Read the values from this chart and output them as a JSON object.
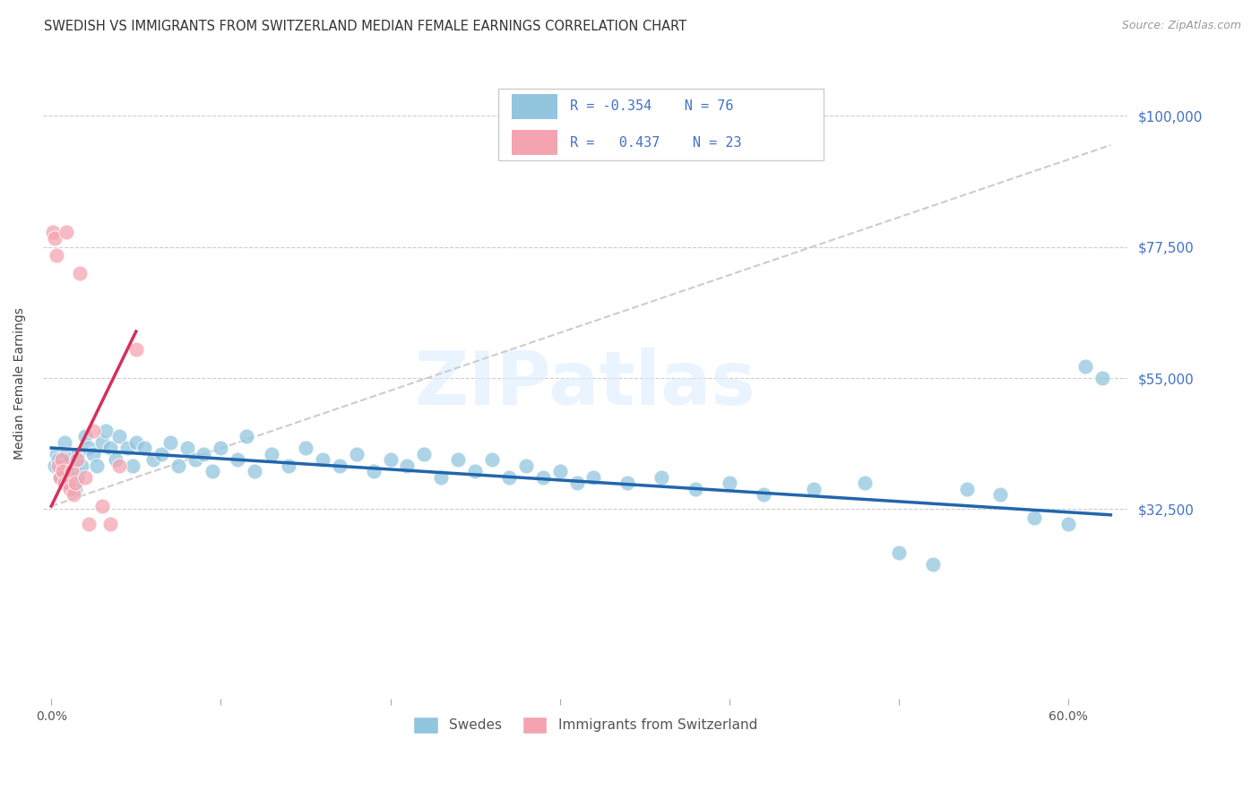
{
  "title": "SWEDISH VS IMMIGRANTS FROM SWITZERLAND MEDIAN FEMALE EARNINGS CORRELATION CHART",
  "source": "Source: ZipAtlas.com",
  "ylabel": "Median Female Earnings",
  "ytick_vals": [
    0,
    32500,
    55000,
    77500,
    100000
  ],
  "ytick_labels": [
    "",
    "$32,500",
    "$55,000",
    "$77,500",
    "$100,000"
  ],
  "xtick_vals": [
    0.0,
    0.1,
    0.2,
    0.3,
    0.4,
    0.5,
    0.6
  ],
  "xtick_labels": [
    "0.0%",
    "",
    "",
    "",
    "",
    "",
    "60.0%"
  ],
  "xmin": -0.005,
  "xmax": 0.635,
  "ymin": 5000,
  "ymax": 108000,
  "blue_R": -0.354,
  "blue_N": 76,
  "pink_R": 0.437,
  "pink_N": 23,
  "blue_color": "#92c5de",
  "pink_color": "#f4a4b0",
  "blue_line_color": "#2166ac",
  "pink_line_color": "#d6305a",
  "dashed_line_color": "#cccccc",
  "legend_label_blue": "Swedes",
  "legend_label_pink": "Immigrants from Switzerland",
  "watermark": "ZIPatlas",
  "blue_scatter_x": [
    0.002,
    0.003,
    0.004,
    0.005,
    0.006,
    0.007,
    0.008,
    0.009,
    0.01,
    0.011,
    0.012,
    0.013,
    0.014,
    0.015,
    0.016,
    0.018,
    0.02,
    0.022,
    0.025,
    0.027,
    0.03,
    0.032,
    0.035,
    0.038,
    0.04,
    0.045,
    0.048,
    0.05,
    0.055,
    0.06,
    0.065,
    0.07,
    0.075,
    0.08,
    0.085,
    0.09,
    0.095,
    0.1,
    0.11,
    0.115,
    0.12,
    0.13,
    0.14,
    0.15,
    0.16,
    0.17,
    0.18,
    0.19,
    0.2,
    0.21,
    0.22,
    0.23,
    0.24,
    0.25,
    0.26,
    0.27,
    0.28,
    0.29,
    0.3,
    0.31,
    0.32,
    0.34,
    0.36,
    0.38,
    0.4,
    0.42,
    0.45,
    0.48,
    0.5,
    0.52,
    0.54,
    0.56,
    0.58,
    0.6,
    0.61,
    0.62
  ],
  "blue_scatter_y": [
    40000,
    42000,
    41000,
    38000,
    40000,
    39000,
    44000,
    42000,
    37000,
    41000,
    38000,
    40000,
    36000,
    38000,
    42000,
    40000,
    45000,
    43000,
    42000,
    40000,
    44000,
    46000,
    43000,
    41000,
    45000,
    43000,
    40000,
    44000,
    43000,
    41000,
    42000,
    44000,
    40000,
    43000,
    41000,
    42000,
    39000,
    43000,
    41000,
    45000,
    39000,
    42000,
    40000,
    43000,
    41000,
    40000,
    42000,
    39000,
    41000,
    40000,
    42000,
    38000,
    41000,
    39000,
    41000,
    38000,
    40000,
    38000,
    39000,
    37000,
    38000,
    37000,
    38000,
    36000,
    37000,
    35000,
    36000,
    37000,
    25000,
    23000,
    36000,
    35000,
    31000,
    30000,
    57000,
    55000
  ],
  "pink_scatter_x": [
    0.001,
    0.002,
    0.003,
    0.004,
    0.005,
    0.006,
    0.007,
    0.008,
    0.009,
    0.01,
    0.011,
    0.012,
    0.013,
    0.014,
    0.015,
    0.017,
    0.02,
    0.022,
    0.025,
    0.03,
    0.035,
    0.04,
    0.05
  ],
  "pink_scatter_y": [
    80000,
    79000,
    76000,
    40000,
    38000,
    41000,
    39000,
    37000,
    80000,
    37000,
    36000,
    39000,
    35000,
    37000,
    41000,
    73000,
    38000,
    30000,
    46000,
    33000,
    30000,
    40000,
    60000
  ],
  "blue_line_x": [
    0.0,
    0.625
  ],
  "blue_line_y": [
    43000,
    31500
  ],
  "pink_line_x": [
    0.0,
    0.05
  ],
  "pink_line_y": [
    33000,
    63000
  ],
  "dashed_line_x": [
    0.0,
    0.625
  ],
  "dashed_line_y": [
    33000,
    95000
  ]
}
